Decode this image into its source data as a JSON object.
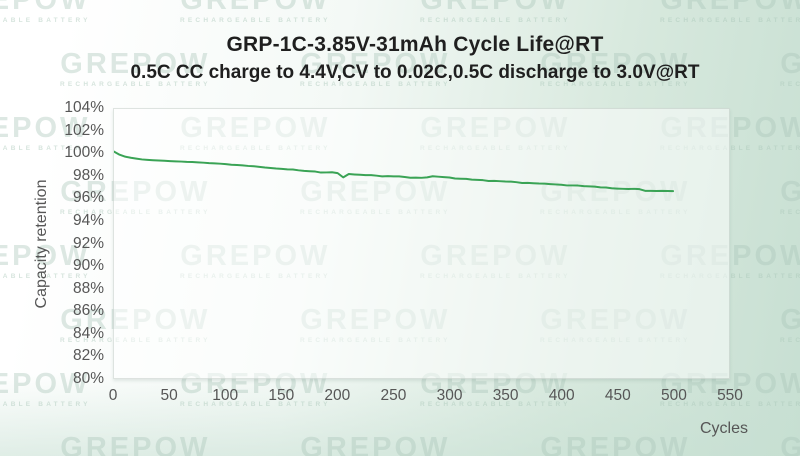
{
  "header": {
    "title": "GRP-1C-3.85V-31mAh Cycle Life@RT",
    "subtitle": "0.5C CC charge to 4.4V,CV to 0.02C,0.5C discharge to 3.0V@RT"
  },
  "watermark": {
    "text": "GREPOW",
    "subtext": "RECHARGEABLE BATTERY"
  },
  "colors": {
    "line": "#3aa355",
    "title_text": "#1f1f1f",
    "tick_text": "#565656",
    "background_start": "#ffffff",
    "background_end": "#c7dfd2",
    "plot_background": "rgba(255,255,255,0.52)"
  },
  "chart_data": {
    "type": "line",
    "title": "GRP-1C-3.85V-31mAh Cycle Life@RT",
    "subtitle": "0.5C CC charge to 4.4V,CV to 0.02C,0.5C discharge to 3.0V@RT",
    "xlabel": "Cycles",
    "ylabel": "Capacity retention",
    "xlim": [
      0,
      550
    ],
    "ylim": [
      80,
      104
    ],
    "xticks": [
      0,
      50,
      100,
      150,
      200,
      250,
      300,
      350,
      400,
      450,
      500,
      550
    ],
    "yticks": [
      104,
      102,
      100,
      98,
      96,
      94,
      92,
      90,
      88,
      86,
      84,
      82,
      80
    ],
    "ytick_suffix": "%",
    "grid": false,
    "legend": "none",
    "series": [
      {
        "name": "Capacity retention",
        "color": "#3aa355",
        "x": [
          0,
          5,
          10,
          15,
          20,
          25,
          30,
          35,
          40,
          45,
          50,
          55,
          60,
          65,
          70,
          75,
          80,
          85,
          90,
          95,
          100,
          105,
          110,
          115,
          120,
          125,
          130,
          135,
          140,
          145,
          150,
          155,
          160,
          165,
          170,
          175,
          180,
          185,
          190,
          195,
          200,
          205,
          210,
          215,
          220,
          225,
          230,
          235,
          240,
          245,
          250,
          255,
          260,
          265,
          270,
          275,
          280,
          285,
          290,
          295,
          300,
          305,
          310,
          315,
          320,
          325,
          330,
          335,
          340,
          345,
          350,
          355,
          360,
          365,
          370,
          375,
          380,
          385,
          390,
          395,
          400,
          405,
          410,
          415,
          420,
          425,
          430,
          435,
          440,
          445,
          450,
          455,
          460,
          465,
          470,
          475,
          480,
          485,
          490,
          495,
          500
        ],
        "y": [
          100.2,
          99.92,
          99.75,
          99.65,
          99.57,
          99.5,
          99.46,
          99.43,
          99.41,
          99.38,
          99.35,
          99.33,
          99.31,
          99.28,
          99.27,
          99.24,
          99.21,
          99.17,
          99.15,
          99.12,
          99.08,
          99.03,
          99.0,
          98.97,
          98.92,
          98.89,
          98.84,
          98.78,
          98.74,
          98.69,
          98.66,
          98.61,
          98.6,
          98.53,
          98.48,
          98.45,
          98.42,
          98.33,
          98.34,
          98.36,
          98.28,
          97.9,
          98.2,
          98.16,
          98.13,
          98.1,
          98.1,
          98.05,
          97.99,
          98.01,
          97.99,
          97.99,
          97.93,
          97.87,
          97.88,
          97.86,
          97.9,
          98.0,
          97.96,
          97.92,
          97.89,
          97.8,
          97.78,
          97.77,
          97.7,
          97.68,
          97.65,
          97.58,
          97.59,
          97.56,
          97.53,
          97.52,
          97.47,
          97.4,
          97.41,
          97.38,
          97.35,
          97.34,
          97.3,
          97.27,
          97.24,
          97.18,
          97.18,
          97.17,
          97.12,
          97.1,
          97.07,
          97.01,
          97.0,
          96.93,
          96.9,
          96.88,
          96.86,
          96.88,
          96.85,
          96.7,
          96.7,
          96.68,
          96.7,
          96.68,
          96.67
        ]
      }
    ]
  }
}
